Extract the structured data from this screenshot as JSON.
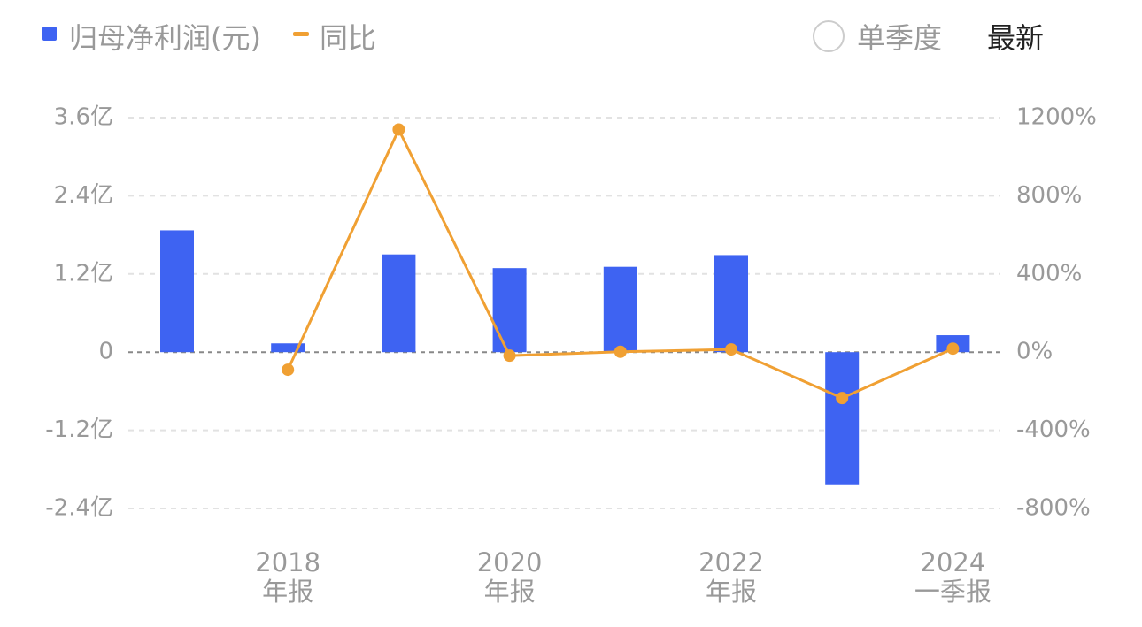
{
  "chart_data": {
    "type": "bar-line",
    "categories": [
      null,
      "2018\n年报",
      null,
      "2020\n年报",
      null,
      "2022\n年报",
      null,
      "2024\n一季报"
    ],
    "series": [
      {
        "name": "归母净利润(元)",
        "color": "#3e63f2",
        "type": "bar",
        "values": [
          187000000,
          13500000,
          150000000,
          129000000,
          131000000,
          149000000,
          -203000000,
          26000000
        ]
      },
      {
        "name": "同比",
        "color": "#f0a033",
        "type": "line",
        "axis": "y2",
        "values": [
          null,
          -90,
          1139,
          -18,
          2,
          14,
          -235,
          18
        ]
      }
    ],
    "ylim": [
      -240000000,
      360000000
    ],
    "yticks": [
      {
        "value": -240000000,
        "label": "-2.4亿"
      },
      {
        "value": -120000000,
        "label": "-1.2亿"
      },
      0,
      {
        "value": 120000000,
        "label": "1.2亿"
      },
      {
        "value": 240000000,
        "label": "2.4亿"
      },
      {
        "value": 360000000,
        "label": "3.6亿"
      }
    ],
    "y2lim": [
      -800,
      1200
    ],
    "y2ticks": [
      {
        "value": -800,
        "label": "-800%"
      },
      {
        "value": -400,
        "label": "-400%"
      },
      {
        "value": 0,
        "label": "0%"
      },
      {
        "value": 400,
        "label": "400%"
      },
      {
        "value": 800,
        "label": "800%"
      },
      {
        "value": 1200,
        "label": "1200%"
      }
    ],
    "grid": true
  },
  "controls": {
    "single_quarter": "单季度",
    "latest": "最新"
  }
}
